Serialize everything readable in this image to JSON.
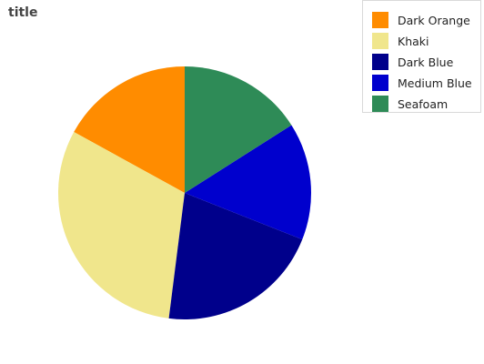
{
  "chart_data": {
    "type": "pie",
    "title": "title",
    "start_angle_deg": 0,
    "direction": "clockwise-from-top-negative",
    "slices": [
      {
        "label": "Dark Orange",
        "value": 17,
        "color": "#FF8C00"
      },
      {
        "label": "Khaki",
        "value": 31,
        "color": "#F0E68C"
      },
      {
        "label": "Dark Blue",
        "value": 21,
        "color": "#00008B"
      },
      {
        "label": "Medium Blue",
        "value": 15,
        "color": "#0000CD"
      },
      {
        "label": "Seafoam",
        "value": 16,
        "color": "#2E8B57"
      }
    ],
    "legend_position": "top-right"
  }
}
